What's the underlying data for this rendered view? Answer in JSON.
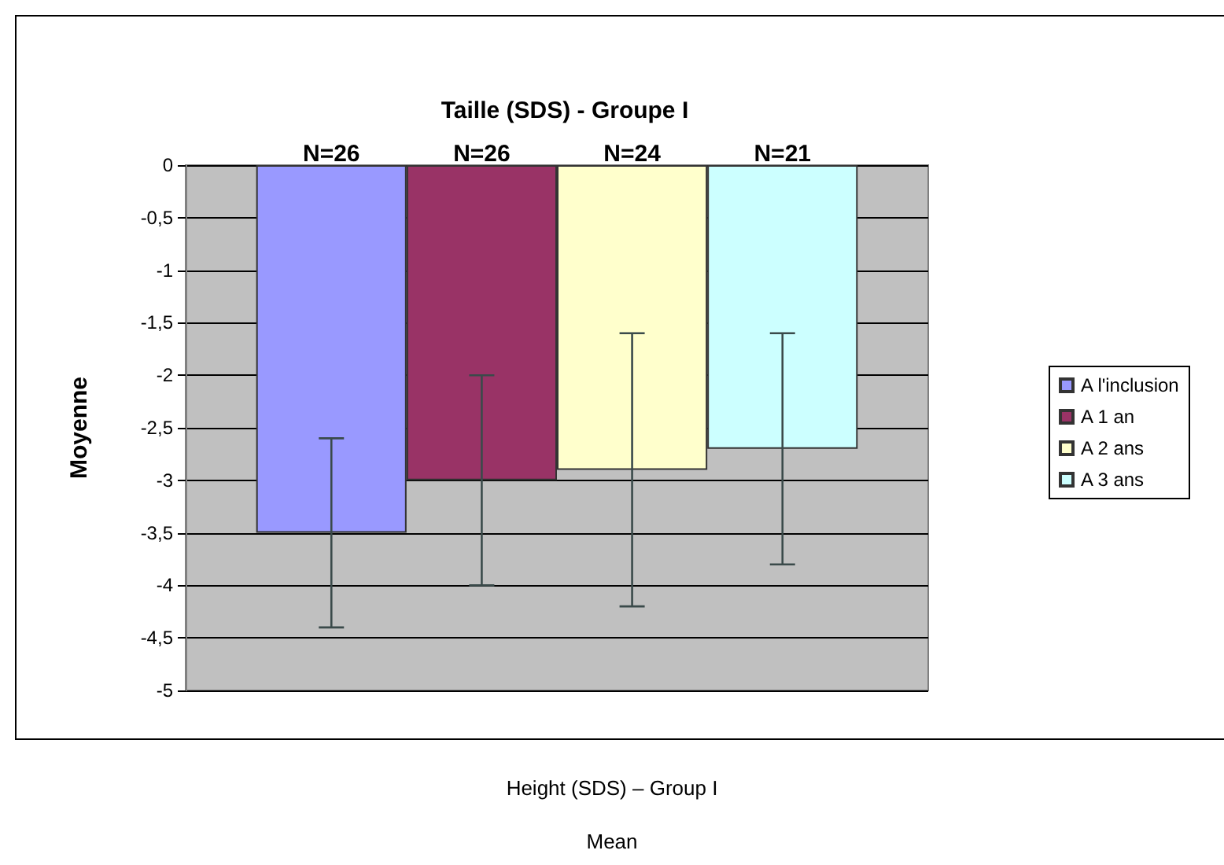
{
  "chart_data": {
    "type": "bar",
    "title": "Taille (SDS) - Groupe I",
    "ylabel": "Moyenne",
    "categories": [
      null
    ],
    "series": [
      {
        "name": "A l'inclusion",
        "color": "#9999ff",
        "values": [
          -3.5
        ],
        "errors": [
          0.9
        ]
      },
      {
        "name": "A 1 an",
        "color": "#993366",
        "values": [
          -3.0
        ],
        "errors": [
          1.0
        ]
      },
      {
        "name": "A 2 ans",
        "color": "#ffffcc",
        "values": [
          -2.9
        ],
        "errors": [
          1.3
        ]
      },
      {
        "name": "A 3 ans",
        "color": "#ccffff",
        "values": [
          -2.7
        ],
        "errors": [
          1.1
        ]
      }
    ],
    "annotations": [
      "N=26",
      "N=26",
      "N=24",
      "N=21",
      "Height (SDS) – Group I",
      "Mean"
    ],
    "ylim": [
      -5,
      0
    ],
    "yticks": [
      0,
      {
        "value": -0.5,
        "label": "-0,5"
      },
      -1,
      {
        "value": -1.5,
        "label": "-1,5"
      },
      -2,
      {
        "value": -2.5,
        "label": "-2,5"
      },
      -3,
      {
        "value": -3.5,
        "label": "-3,5"
      },
      -4,
      {
        "value": -4.5,
        "label": "-4,5"
      },
      -5
    ],
    "grid": "y",
    "legend": "right"
  }
}
